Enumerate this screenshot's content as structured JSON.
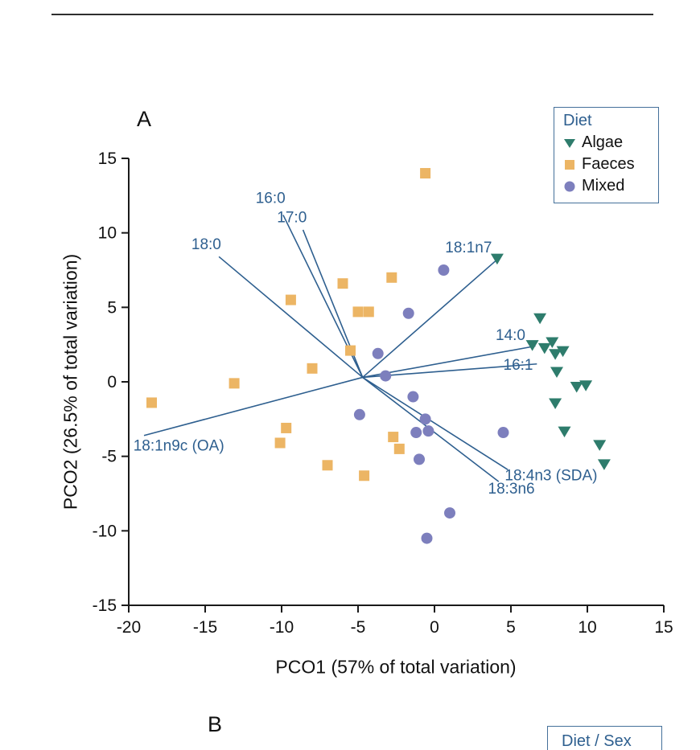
{
  "panel_a": {
    "label": "A",
    "legend": {
      "title": "Diet",
      "entries": [
        {
          "label": "Algae",
          "marker": "triangle-down",
          "color": "#2e7c6c"
        },
        {
          "label": "Faeces",
          "marker": "square",
          "color": "#ecb564"
        },
        {
          "label": "Mixed",
          "marker": "circle",
          "color": "#7d7fbd"
        }
      ]
    },
    "chart_data": {
      "type": "scatter",
      "title": "",
      "xlabel": "PCO1 (57% of total variation)",
      "ylabel": "PCO2 (26.5% of total variation)",
      "xlim": [
        -20,
        15
      ],
      "ylim": [
        -15,
        15
      ],
      "xticks": [
        -20,
        -15,
        -10,
        -5,
        0,
        5,
        10,
        15
      ],
      "yticks": [
        -15,
        -10,
        -5,
        0,
        5,
        10,
        15
      ],
      "grid": false,
      "legend_position": "top-right",
      "series": [
        {
          "name": "Algae",
          "marker": "triangle-down",
          "color": "#2e7c6c",
          "points": [
            [
              4.1,
              8.3
            ],
            [
              6.9,
              4.3
            ],
            [
              6.4,
              2.5
            ],
            [
              7.2,
              2.3
            ],
            [
              7.7,
              2.7
            ],
            [
              7.9,
              1.9
            ],
            [
              8.4,
              2.1
            ],
            [
              8.0,
              0.7
            ],
            [
              9.3,
              -0.3
            ],
            [
              9.9,
              -0.2
            ],
            [
              7.9,
              -1.4
            ],
            [
              8.5,
              -3.3
            ],
            [
              10.8,
              -4.2
            ],
            [
              11.1,
              -5.5
            ]
          ]
        },
        {
          "name": "Faeces",
          "marker": "square",
          "color": "#ecb564",
          "points": [
            [
              -0.6,
              14.0
            ],
            [
              -6.0,
              6.6
            ],
            [
              -2.8,
              7.0
            ],
            [
              -9.4,
              5.5
            ],
            [
              -5.0,
              4.7
            ],
            [
              -4.3,
              4.7
            ],
            [
              -5.5,
              2.1
            ],
            [
              -8.0,
              0.9
            ],
            [
              -13.1,
              -0.1
            ],
            [
              -18.5,
              -1.4
            ],
            [
              -9.7,
              -3.1
            ],
            [
              -10.1,
              -4.1
            ],
            [
              -7.0,
              -5.6
            ],
            [
              -4.6,
              -6.3
            ],
            [
              -2.7,
              -3.7
            ],
            [
              -2.3,
              -4.5
            ]
          ]
        },
        {
          "name": "Mixed",
          "marker": "circle",
          "color": "#7d7fbd",
          "points": [
            [
              0.6,
              7.5
            ],
            [
              -1.7,
              4.6
            ],
            [
              -3.7,
              1.9
            ],
            [
              -3.2,
              0.4
            ],
            [
              -1.4,
              -1.0
            ],
            [
              -4.9,
              -2.2
            ],
            [
              -0.6,
              -2.5
            ],
            [
              -1.2,
              -3.4
            ],
            [
              -0.4,
              -3.3
            ],
            [
              -1.0,
              -5.2
            ],
            [
              4.5,
              -3.4
            ],
            [
              1.0,
              -8.8
            ],
            [
              -0.5,
              -10.5
            ]
          ]
        }
      ],
      "vectors": {
        "origin": [
          -4.7,
          0.3
        ],
        "color": "#2e5f8f",
        "items": [
          {
            "label": "16:0",
            "end": [
              -9.9,
              11.2
            ],
            "label_pos": [
              -11.7,
              12.0
            ]
          },
          {
            "label": "17:0",
            "end": [
              -8.6,
              10.2
            ],
            "label_pos": [
              -10.3,
              10.7
            ]
          },
          {
            "label": "18:0",
            "end": [
              -14.1,
              8.4
            ],
            "label_pos": [
              -15.9,
              8.9
            ]
          },
          {
            "label": "18:1n7",
            "end": [
              4.2,
              8.3
            ],
            "label_pos": [
              0.7,
              8.7
            ]
          },
          {
            "label": "14:0",
            "end": [
              6.6,
              2.4
            ],
            "label_pos": [
              4.0,
              2.8
            ]
          },
          {
            "label": "16:1",
            "end": [
              6.7,
              1.2
            ],
            "label_pos": [
              4.5,
              0.8
            ]
          },
          {
            "label": "18:1n9c (OA)",
            "end": [
              -19.0,
              -3.6
            ],
            "label_pos": [
              -19.7,
              -4.6
            ]
          },
          {
            "label": "18:4n3 (SDA)",
            "end": [
              4.8,
              -5.9
            ],
            "label_pos": [
              4.6,
              -6.6
            ]
          },
          {
            "label": "18:3n6",
            "end": [
              4.2,
              -6.7
            ],
            "label_pos": [
              3.5,
              -7.5
            ]
          }
        ]
      }
    }
  },
  "panel_b": {
    "label": "B",
    "legend": {
      "title": "Diet / Sex"
    }
  }
}
